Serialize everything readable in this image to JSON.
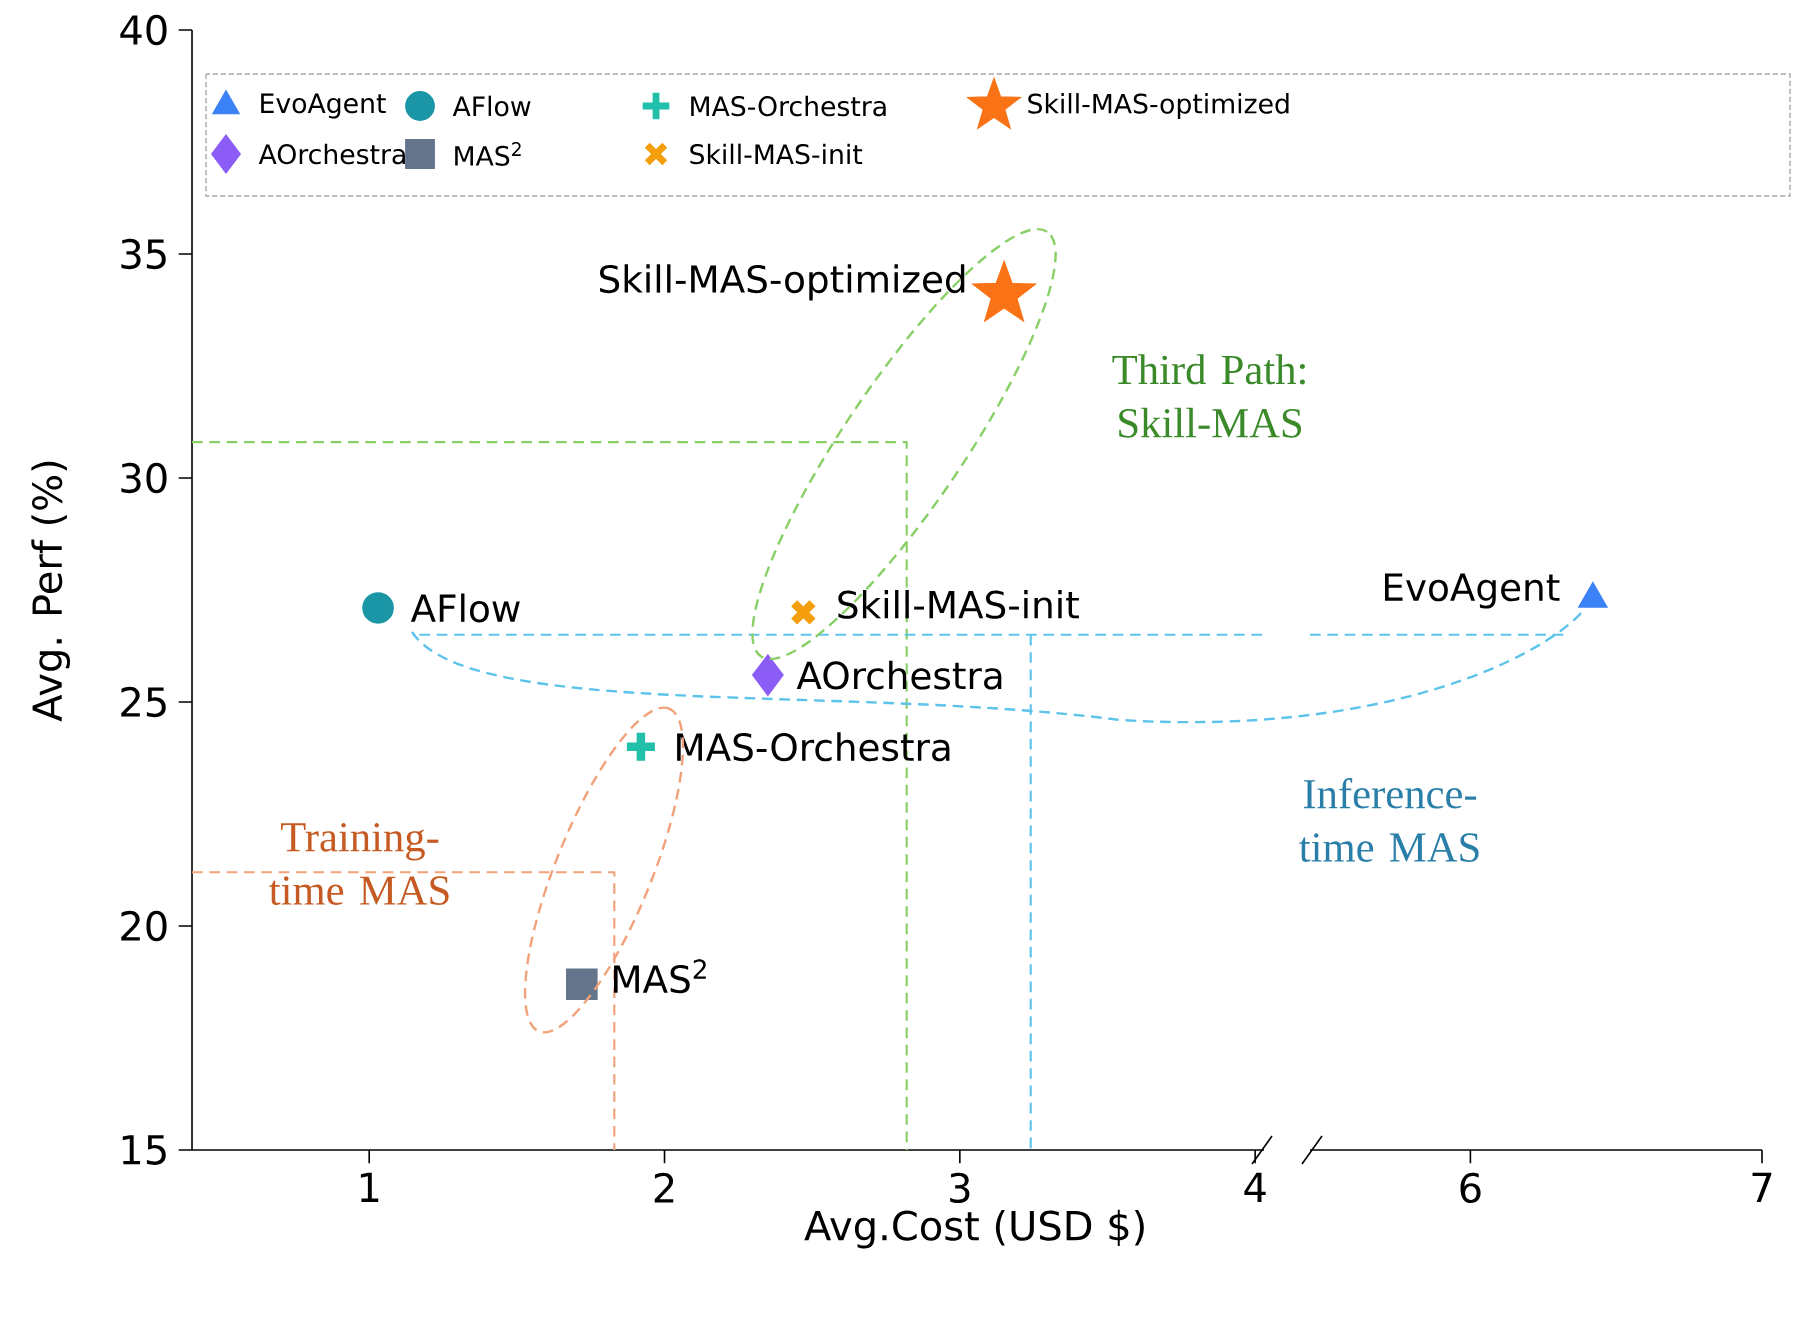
{
  "chart_data": [
    {
      "type": "scatter",
      "xlabel": "Avg.Cost (USD $)",
      "ylabel": "Avg. Perf (%)",
      "xlim": [
        0.4,
        4.03
      ],
      "xticks": [
        1,
        2,
        3,
        4
      ],
      "ylim": [
        15,
        40
      ],
      "yticks": [
        15,
        20,
        25,
        30,
        35,
        40
      ],
      "legend": "top",
      "annotations": [
        "Third Path: Skill-MAS",
        "Training-time MAS",
        "Inference-time MAS"
      ],
      "series": [
        {
          "name": "AFlow",
          "color": "#1a96a6",
          "marker": "circle",
          "x": [
            1.03
          ],
          "values": [
            27.1
          ]
        },
        {
          "name": "MAS-Orchestra",
          "color": "#22c0aa",
          "marker": "plus",
          "x": [
            1.92
          ],
          "values": [
            24.0
          ]
        },
        {
          "name": "Skill-MAS-optimized",
          "color": "#f97316",
          "marker": "star",
          "x": [
            3.15
          ],
          "values": [
            34.1
          ]
        },
        {
          "name": "AOrchestra",
          "color": "#8b5cf6",
          "marker": "diamond",
          "x": [
            2.35
          ],
          "values": [
            25.6
          ]
        },
        {
          "name": "MAS$^{2}$",
          "color": "#64748b",
          "marker": "square",
          "x": [
            1.72
          ],
          "values": [
            18.7
          ]
        },
        {
          "name": "Skill-MAS-init",
          "color": "#f59e0b",
          "marker": "cross",
          "x": [
            2.47
          ],
          "values": [
            27.0
          ]
        },
        {
          "type": "line",
          "color": "#88d066",
          "line_style": "dashed",
          "x": [
            0.4,
            2.82,
            2.82
          ],
          "values": [
            30.8,
            30.8,
            15
          ]
        },
        {
          "type": "line",
          "color": "#f2a27a",
          "line_style": "dashed",
          "x": [
            0.4,
            1.83,
            1.83
          ],
          "values": [
            21.2,
            21.2,
            15
          ]
        },
        {
          "type": "line",
          "color": "#5cc3ea",
          "line_style": "dashed",
          "x": [
            1.17,
            4.03
          ],
          "values": [
            26.5,
            26.5
          ]
        },
        {
          "type": "line",
          "color": "#5cc3ea",
          "line_style": "dashed",
          "x": [
            3.24,
            3.24
          ],
          "values": [
            26.5,
            15
          ]
        }
      ]
    },
    {
      "type": "scatter",
      "xlim": [
        5.45,
        7
      ],
      "xticks": [
        6,
        7
      ],
      "ylim": [
        15,
        40
      ],
      "tick_labels": "x",
      "series": [
        {
          "name": "EvoAgent",
          "color": "#3b82f6",
          "marker": "triangle",
          "x": [
            6.42
          ],
          "values": [
            27.3
          ]
        },
        {
          "type": "line",
          "color": "#5cc3ea",
          "line_style": "dashed",
          "x": [
            5.45,
            6.33
          ],
          "values": [
            26.5,
            26.5
          ]
        }
      ]
    }
  ]
}
